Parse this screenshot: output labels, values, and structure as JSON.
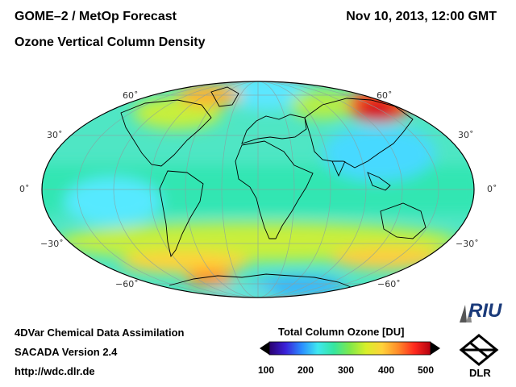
{
  "header": {
    "title": "GOME–2 / MetOp Forecast",
    "subtitle": "Ozone Vertical Column Density",
    "datetime": "Nov 10, 2013, 12:00 GMT"
  },
  "map": {
    "projection": "Hammer",
    "latitude_labels": [
      "60˚",
      "30˚",
      "0˚",
      "−30˚",
      "−60˚"
    ]
  },
  "footer": {
    "line1": "4DVar Chemical Data Assimilation",
    "line2": "SACADA Version 2.4",
    "line3": "http://wdc.dlr.de"
  },
  "colorbar": {
    "title": "Total Column Ozone [DU]",
    "ticks": [
      "100",
      "200",
      "300",
      "400",
      "500"
    ],
    "range": [
      100,
      500
    ],
    "colors": [
      "#2a006e",
      "#3a20d8",
      "#2a8cff",
      "#3fe7f0",
      "#35e6a0",
      "#7fe84a",
      "#d8ef2a",
      "#ffd23a",
      "#ff8a2a",
      "#ff2a1e",
      "#b40010"
    ]
  },
  "logos": {
    "riu": "RIU",
    "dlr": "DLR"
  }
}
